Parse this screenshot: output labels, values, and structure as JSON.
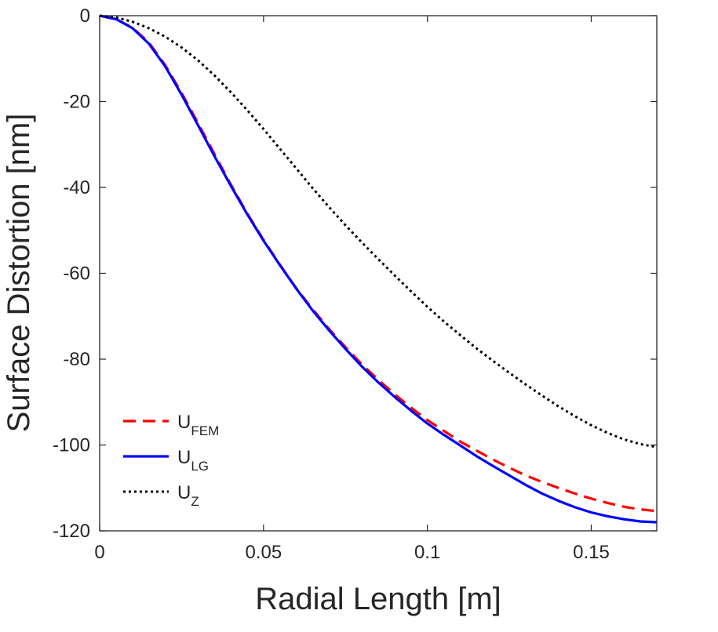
{
  "chart_data": {
    "type": "line",
    "title": "",
    "xlabel": "Radial Length [m]",
    "ylabel": "Surface Distortion [nm]",
    "xlim": [
      0,
      0.17
    ],
    "ylim": [
      -120,
      0
    ],
    "grid": false,
    "legend_position": "bottom-left",
    "xticks": [
      0,
      0.05,
      0.1,
      0.15
    ],
    "xtick_labels": [
      "0",
      "0.05",
      "0.1",
      "0.15"
    ],
    "yticks": [
      0,
      -20,
      -40,
      -60,
      -80,
      -100,
      -120
    ],
    "ytick_labels": [
      "0",
      "-20",
      "-40",
      "-60",
      "-80",
      "-100",
      "-120"
    ],
    "series": [
      {
        "name": "U_FEM",
        "legend_main": "U",
        "legend_sub": "FEM",
        "color": "#ff0000",
        "style": "dashed",
        "x": [
          0,
          0.005,
          0.01,
          0.015,
          0.02,
          0.025,
          0.03,
          0.035,
          0.04,
          0.045,
          0.05,
          0.055,
          0.06,
          0.065,
          0.07,
          0.075,
          0.08,
          0.085,
          0.09,
          0.095,
          0.1,
          0.105,
          0.11,
          0.115,
          0.12,
          0.125,
          0.13,
          0.135,
          0.14,
          0.145,
          0.15,
          0.155,
          0.16,
          0.165,
          0.17
        ],
        "y": [
          0,
          -0.8,
          -2.8,
          -6.2,
          -11.5,
          -18.0,
          -25.0,
          -32.2,
          -39.3,
          -46.0,
          -52.2,
          -58.0,
          -63.5,
          -68.4,
          -73.0,
          -77.2,
          -81.2,
          -84.8,
          -88.2,
          -91.3,
          -94.2,
          -96.7,
          -99.2,
          -101.3,
          -103.4,
          -105.3,
          -107.1,
          -108.6,
          -110.0,
          -111.3,
          -112.5,
          -113.5,
          -114.4,
          -115.0,
          -115.4
        ]
      },
      {
        "name": "U_LG",
        "legend_main": "U",
        "legend_sub": "LG",
        "color": "#0000ff",
        "style": "solid",
        "x": [
          0,
          0.005,
          0.01,
          0.015,
          0.02,
          0.025,
          0.03,
          0.035,
          0.04,
          0.045,
          0.05,
          0.055,
          0.06,
          0.065,
          0.07,
          0.075,
          0.08,
          0.085,
          0.09,
          0.095,
          0.1,
          0.105,
          0.11,
          0.115,
          0.12,
          0.125,
          0.13,
          0.135,
          0.14,
          0.145,
          0.15,
          0.155,
          0.16,
          0.165,
          0.17
        ],
        "y": [
          0,
          -0.8,
          -2.9,
          -6.5,
          -11.8,
          -18.4,
          -25.5,
          -32.7,
          -39.6,
          -46.2,
          -52.4,
          -58.1,
          -63.6,
          -68.7,
          -73.3,
          -77.6,
          -81.7,
          -85.4,
          -88.8,
          -92.0,
          -95.0,
          -97.6,
          -100.1,
          -102.6,
          -104.9,
          -107.1,
          -109.3,
          -111.3,
          -113.0,
          -114.5,
          -115.7,
          -116.6,
          -117.3,
          -117.8,
          -118.0
        ]
      },
      {
        "name": "U_Z",
        "legend_main": "U",
        "legend_sub": "Z",
        "color": "#000000",
        "style": "dotted",
        "x": [
          0,
          0.005,
          0.01,
          0.015,
          0.02,
          0.025,
          0.03,
          0.035,
          0.04,
          0.045,
          0.05,
          0.055,
          0.06,
          0.065,
          0.07,
          0.075,
          0.08,
          0.085,
          0.09,
          0.095,
          0.1,
          0.105,
          0.11,
          0.115,
          0.12,
          0.125,
          0.13,
          0.135,
          0.14,
          0.145,
          0.15,
          0.155,
          0.16,
          0.165,
          0.17
        ],
        "y": [
          0,
          -0.4,
          -1.4,
          -2.9,
          -4.9,
          -7.4,
          -10.4,
          -13.9,
          -17.8,
          -22.0,
          -26.4,
          -31.0,
          -35.6,
          -40.2,
          -44.6,
          -48.8,
          -52.8,
          -56.7,
          -60.5,
          -64.2,
          -67.8,
          -71.2,
          -74.4,
          -77.5,
          -80.4,
          -83.2,
          -85.9,
          -88.5,
          -91.0,
          -93.3,
          -95.4,
          -97.2,
          -98.7,
          -99.8,
          -100.5
        ]
      }
    ]
  }
}
